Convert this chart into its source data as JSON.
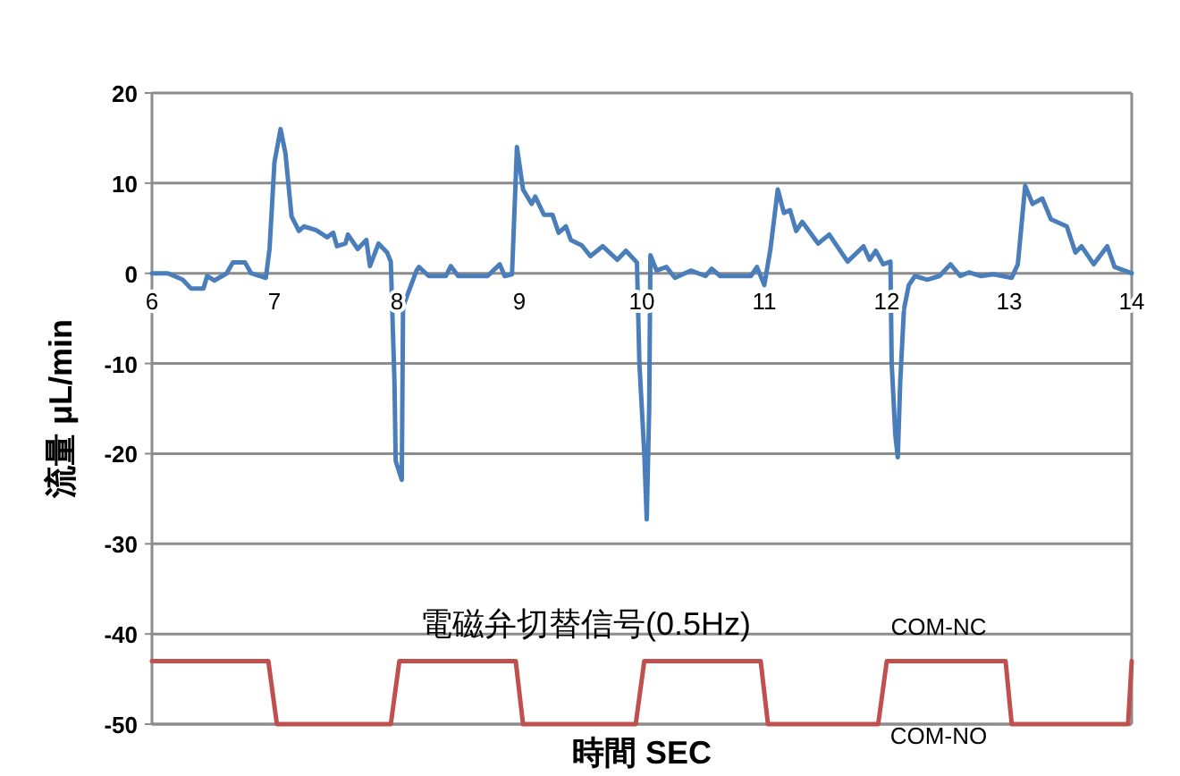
{
  "chart_data": {
    "type": "line",
    "xlabel": "時間 SEC",
    "ylabel": "流量 μL/min",
    "xlim": [
      6,
      14
    ],
    "ylim": [
      -50,
      20
    ],
    "xticks": [
      6,
      7,
      8,
      9,
      10,
      11,
      12,
      13,
      14
    ],
    "yticks": [
      -50,
      -40,
      -30,
      -20,
      -10,
      0,
      10,
      20
    ],
    "grid": "y",
    "marker": "none",
    "line_style": "solid",
    "annotations": [
      "電磁弁切替信号(0.5Hz)",
      "COM-NC",
      "COM-NO"
    ],
    "series": [
      {
        "color": "#4a7ebb",
        "x": [
          6,
          6.13,
          6.25,
          6.32,
          6.42,
          6.45,
          6.51,
          6.61,
          6.66,
          6.76,
          6.81,
          6.93,
          6.96,
          7.0,
          7.05,
          7.09,
          7.14,
          7.2,
          7.24,
          7.34,
          7.43,
          7.48,
          7.51,
          7.58,
          7.6,
          7.68,
          7.75,
          7.78,
          7.85,
          7.92,
          7.95,
          7.98,
          7.99,
          8.04,
          8.05,
          8.16,
          8.18,
          8.26,
          8.4,
          8.44,
          8.5,
          8.74,
          8.84,
          8.88,
          8.94,
          8.98,
          9.03,
          9.1,
          9.13,
          9.2,
          9.27,
          9.32,
          9.38,
          9.42,
          9.51,
          9.58,
          9.68,
          9.8,
          9.87,
          9.96,
          9.98,
          10.02,
          10.04,
          10.06,
          10.07,
          10.12,
          10.2,
          10.27,
          10.4,
          10.52,
          10.57,
          10.64,
          10.89,
          10.94,
          11.0,
          11.05,
          11.11,
          11.16,
          11.21,
          11.26,
          11.31,
          11.44,
          11.53,
          11.68,
          11.81,
          11.86,
          11.91,
          11.97,
          12.03,
          12.04,
          12.07,
          12.09,
          12.11,
          12.14,
          12.18,
          12.23,
          12.33,
          12.43,
          12.52,
          12.6,
          12.67,
          12.77,
          12.87,
          13.02,
          13.07,
          13.13,
          13.19,
          13.27,
          13.34,
          13.47,
          13.54,
          13.59,
          13.69,
          13.8,
          13.86,
          14.0
        ],
        "values": [
          0,
          0,
          -0.7,
          -1.7,
          -1.7,
          -0.3,
          -0.8,
          0,
          1.2,
          1.2,
          0,
          -0.5,
          2.7,
          12.3,
          16,
          13.3,
          6.3,
          4.7,
          5.2,
          4.8,
          4,
          4.5,
          3,
          3.3,
          4.3,
          2.7,
          3.7,
          0.8,
          3.3,
          2.3,
          1.3,
          -12,
          -20.8,
          -22.9,
          -3.7,
          0.3,
          0.7,
          -0.3,
          -0.3,
          0.8,
          -0.3,
          -0.3,
          1,
          -0.3,
          -0.1,
          14,
          9.3,
          7.7,
          8.5,
          6.5,
          6.5,
          4.5,
          5.2,
          3.7,
          3.1,
          1.9,
          3,
          1.5,
          2.5,
          1.2,
          -10,
          -20,
          -27.3,
          -15,
          2,
          0.3,
          0.7,
          -0.5,
          0.3,
          -0.3,
          0.5,
          -0.3,
          -0.3,
          0.7,
          -1.3,
          2.7,
          9.3,
          6.7,
          7,
          4.7,
          5.7,
          3.3,
          4.3,
          1.3,
          3,
          1.5,
          2.5,
          1,
          1.3,
          -10,
          -18,
          -20.4,
          -12,
          -4,
          -1.3,
          -0.3,
          -0.7,
          -0.3,
          1,
          -0.3,
          0.1,
          -0.3,
          -0.1,
          -0.5,
          1,
          9.7,
          7.7,
          8.3,
          6,
          5.2,
          2.3,
          3,
          1,
          3,
          0.7,
          0
        ]
      },
      {
        "color": "#c0504d",
        "x": [
          6,
          6.95,
          7.02,
          7.95,
          8.02,
          8.97,
          9.03,
          9.95,
          10.02,
          10.97,
          11.03,
          11.93,
          12.0,
          12.97,
          13.02,
          13.97,
          14.0
        ],
        "values": [
          -43,
          -43,
          -50,
          -50,
          -43,
          -43,
          -50,
          -50,
          -43,
          -43,
          -50,
          -50,
          -43,
          -43,
          -50,
          -50,
          -43
        ]
      }
    ]
  }
}
